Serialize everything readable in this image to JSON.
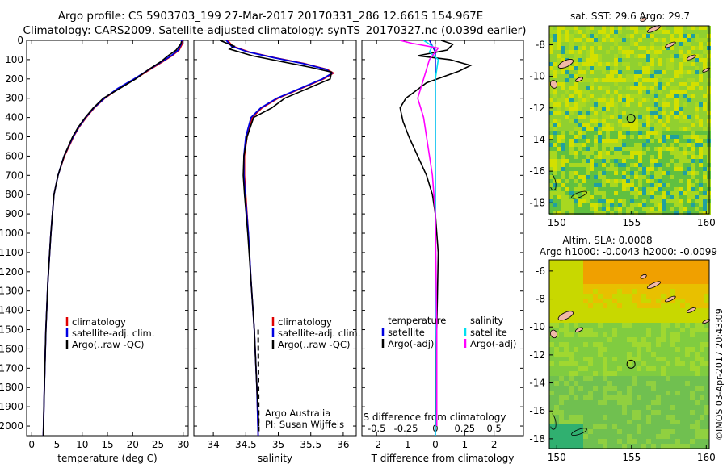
{
  "title_line1": "Argo profile: CS 5903703_199 27-Mar-2017 20170331_286 12.661S 154.967E",
  "title_line2": "Climatology: CARS2009. Satellite-adjusted climatology: synTS_20170327.nc (0.039d earlier)",
  "sst_title": "sat. SST: 29.6 Argo: 29.7",
  "sla_title_1": "Altim. SLA: 0.0008",
  "sla_title_2": "Argo h1000: -0.0043 h2000: -0.0099",
  "credit": "©IMOS 03-Apr-2017 20:43:09",
  "temp_legend": [
    "climatology",
    "satellite-adj. clim.",
    "Argo(..raw -QC)"
  ],
  "sal_legend": [
    "climatology",
    "satellite-adj. clim.",
    "Argo(..raw -QC)"
  ],
  "sal_note": [
    "Argo Australia",
    "PI: Susan Wijffels"
  ],
  "diff_legend": {
    "temp_head": "temperature",
    "sal_head": "salinity",
    "temp_items": [
      "satellite",
      "Argo(-adj)"
    ],
    "sal_items": [
      "satellite",
      "Argo(-adj)"
    ]
  },
  "colors": {
    "climatology": "#e00000",
    "satellite": "#0000e0",
    "argo": "#000000",
    "sal_sat": "#00e0f0",
    "sal_argo": "#ff00ff"
  },
  "chart_data": [
    {
      "type": "line",
      "xlabel": "temperature (deg C)",
      "ylabel": "",
      "xlim": [
        -1,
        31
      ],
      "ylim": [
        2050,
        0
      ],
      "xticks": [
        0,
        5,
        10,
        15,
        20,
        25,
        30
      ],
      "yticks": [
        0,
        100,
        200,
        300,
        400,
        500,
        600,
        700,
        800,
        900,
        1000,
        1100,
        1200,
        1300,
        1400,
        1500,
        1600,
        1700,
        1800,
        1900,
        2000
      ],
      "y_inverted": true,
      "series": [
        {
          "name": "climatology",
          "x": [
            29.9,
            29.8,
            29.2,
            27.8,
            26.0,
            23.5,
            20.5,
            17.2,
            14.5,
            12.4,
            10.8,
            9.4,
            8.3,
            6.5,
            5.2,
            4.4,
            3.8,
            3.2,
            2.8,
            2.5,
            2.3
          ],
          "y": [
            0,
            20,
            50,
            80,
            110,
            150,
            200,
            250,
            300,
            350,
            400,
            450,
            500,
            600,
            700,
            800,
            1000,
            1250,
            1500,
            1800,
            2050
          ]
        },
        {
          "name": "satellite-adj. clim.",
          "x": [
            29.7,
            29.6,
            29.0,
            27.6,
            25.8,
            23.3,
            20.3,
            17.0,
            14.4,
            12.3,
            10.7,
            9.3,
            8.2,
            6.4,
            5.2,
            4.4,
            3.8,
            3.2,
            2.8,
            2.5,
            2.3
          ],
          "y": [
            0,
            20,
            50,
            80,
            110,
            150,
            200,
            250,
            300,
            350,
            400,
            450,
            500,
            600,
            700,
            800,
            1000,
            1250,
            1500,
            1800,
            2050
          ]
        },
        {
          "name": "Argo(..raw -QC)",
          "x": [
            29.7,
            29.5,
            28.6,
            27.0,
            25.6,
            23.2,
            20.6,
            17.4,
            14.2,
            12.2,
            10.6,
            9.2,
            8.1,
            6.4,
            5.2,
            4.4,
            3.8,
            3.2,
            2.8,
            2.5,
            2.3
          ],
          "y": [
            5,
            20,
            50,
            80,
            110,
            150,
            200,
            250,
            300,
            350,
            400,
            450,
            500,
            600,
            700,
            800,
            1000,
            1250,
            1500,
            1800,
            2050
          ]
        }
      ]
    },
    {
      "type": "line",
      "xlabel": "salinity",
      "xlim": [
        33.7,
        36.2
      ],
      "ylim": [
        2050,
        0
      ],
      "xticks": [
        34,
        34.5,
        35,
        35.5,
        36
      ],
      "y_inverted": true,
      "series": [
        {
          "name": "climatology",
          "x": [
            34.22,
            34.3,
            34.55,
            34.95,
            35.4,
            35.75,
            35.85,
            35.7,
            35.35,
            35.0,
            34.75,
            34.6,
            34.52,
            34.48,
            34.48,
            34.5,
            34.54,
            34.58,
            34.63,
            34.67,
            34.69
          ],
          "y": [
            0,
            30,
            60,
            90,
            120,
            150,
            170,
            200,
            250,
            300,
            350,
            400,
            500,
            600,
            700,
            800,
            1000,
            1250,
            1500,
            1800,
            2050
          ]
        },
        {
          "name": "satellite-adj. clim.",
          "x": [
            34.2,
            34.28,
            34.53,
            34.93,
            35.38,
            35.73,
            35.83,
            35.68,
            35.33,
            34.98,
            34.73,
            34.58,
            34.5,
            34.47,
            34.47,
            34.49,
            34.54,
            34.58,
            34.63,
            34.67,
            34.69
          ],
          "y": [
            0,
            30,
            60,
            90,
            120,
            150,
            170,
            200,
            250,
            300,
            350,
            400,
            500,
            600,
            700,
            800,
            1000,
            1250,
            1500,
            1800,
            2050
          ]
        },
        {
          "name": "Argo(..raw -QC)",
          "x": [
            34.1,
            34.32,
            34.25,
            34.6,
            35.05,
            35.5,
            35.82,
            35.8,
            35.45,
            35.1,
            34.9,
            34.62,
            34.52,
            34.47,
            34.46,
            34.48,
            34.53,
            34.58,
            34.63,
            34.67,
            34.7
          ],
          "y": [
            0,
            30,
            45,
            80,
            110,
            140,
            165,
            200,
            250,
            300,
            350,
            400,
            500,
            600,
            700,
            800,
            1000,
            1250,
            1500,
            1800,
            2000
          ]
        }
      ]
    },
    {
      "type": "line",
      "xlabel": "T difference from climatology",
      "xlabel_top": "S difference from climatology",
      "xlim": [
        -2.5,
        3.0
      ],
      "ylim": [
        2050,
        0
      ],
      "xticks": [
        -2,
        -1,
        0,
        1,
        2
      ],
      "xticks_top_values": [
        -0.5,
        -0.25,
        0,
        0.25,
        0.5
      ],
      "y_inverted": true,
      "series": [
        {
          "name": "temperature satellite",
          "x": [
            -0.2,
            -0.1,
            0,
            0,
            0,
            0,
            0,
            0
          ],
          "y": [
            0,
            30,
            60,
            100,
            200,
            400,
            1000,
            2050
          ]
        },
        {
          "name": "temperature Argo(-adj)",
          "x": [
            0.2,
            0.6,
            0.4,
            -0.6,
            0.5,
            1.2,
            0.8,
            -0.3,
            -1.0,
            -1.2,
            -1.1,
            -0.9,
            -0.6,
            -0.3,
            -0.1,
            0,
            0.1,
            0.05,
            0
          ],
          "y": [
            0,
            20,
            50,
            80,
            100,
            130,
            160,
            220,
            300,
            350,
            420,
            500,
            600,
            700,
            800,
            900,
            1100,
            1500,
            2000
          ]
        },
        {
          "name": "salinity satellite",
          "x": [
            -0.4,
            -0.1,
            -0.2,
            0.1,
            0,
            0,
            0,
            0
          ],
          "y": [
            0,
            30,
            60,
            100,
            200,
            400,
            1000,
            2050
          ]
        },
        {
          "name": "salinity Argo(-adj)",
          "x": [
            -1.2,
            -0.8,
            0.1,
            -0.2,
            -0.4,
            -0.6,
            -0.4,
            -0.3,
            -0.1,
            0,
            0.05,
            0.05
          ],
          "y": [
            0,
            15,
            40,
            100,
            200,
            300,
            400,
            500,
            700,
            900,
            1500,
            2000
          ]
        }
      ]
    }
  ],
  "maps": {
    "sst": {
      "xticks": [
        150,
        155,
        160
      ],
      "yticks": [
        -8,
        -10,
        -12,
        -14,
        -16,
        -18
      ],
      "xlim": [
        149.5,
        160.2
      ],
      "ylim": [
        -18.7,
        -6.8
      ],
      "marker": [
        154.967,
        -12.661
      ]
    },
    "sla": {
      "xticks": [
        150,
        155,
        160
      ],
      "yticks": [
        -6,
        -8,
        -10,
        -12,
        -14,
        -16,
        -18
      ],
      "xlim": [
        149.5,
        160.2
      ],
      "ylim": [
        -18.7,
        -5.2
      ],
      "marker": [
        154.967,
        -12.661
      ]
    }
  }
}
